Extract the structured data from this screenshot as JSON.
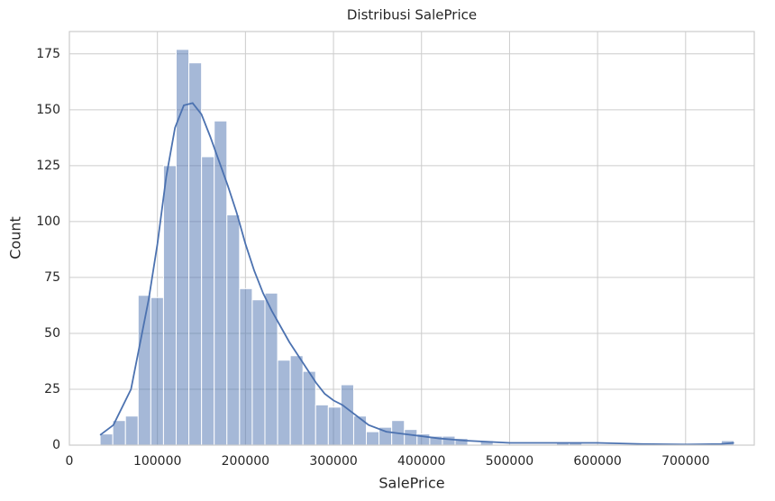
{
  "chart_data": {
    "type": "histogram",
    "title": "Distribusi SalePrice",
    "x_label": "SalePrice",
    "y_label": "Count",
    "bins": [
      34900,
      49302,
      63704,
      78106,
      92508,
      106910,
      121312,
      135714,
      150116,
      164518,
      178920,
      193322,
      207724,
      222126,
      236528,
      250930,
      265332,
      279734,
      294136,
      308538,
      322940,
      337342,
      351744,
      366146,
      380548,
      394950,
      409352,
      423754,
      438156,
      452558,
      466960,
      481362,
      495764,
      510166,
      524568,
      538970,
      553372,
      567774,
      582176,
      596578,
      610980,
      625382,
      639784,
      654186,
      668588,
      682990,
      697392,
      711794,
      726196,
      740598,
      755000
    ],
    "counts": [
      5,
      11,
      13,
      67,
      66,
      125,
      177,
      171,
      129,
      145,
      103,
      70,
      65,
      68,
      38,
      40,
      33,
      18,
      17,
      27,
      13,
      6,
      8,
      11,
      7,
      5,
      4,
      4,
      3,
      0,
      2,
      0,
      0,
      0,
      0,
      0,
      1,
      1,
      0,
      0,
      0,
      0,
      0,
      0,
      0,
      0,
      0,
      0,
      0,
      2
    ],
    "color": "#4c72b0",
    "kde": {
      "color": "#4c72b0",
      "x": [
        34900,
        50000,
        70000,
        90000,
        100000,
        110000,
        120000,
        130000,
        140000,
        150000,
        160000,
        170000,
        180000,
        190000,
        200000,
        210000,
        220000,
        230000,
        240000,
        250000,
        260000,
        270000,
        280000,
        290000,
        300000,
        310000,
        320000,
        330000,
        340000,
        360000,
        380000,
        400000,
        420000,
        450000,
        500000,
        550000,
        600000,
        650000,
        700000,
        740000,
        755000
      ],
      "values": [
        4.5,
        9,
        25,
        65,
        90,
        120,
        142,
        152,
        153,
        148,
        138,
        127,
        116,
        104,
        90,
        78,
        68,
        60,
        53,
        46,
        40,
        34,
        28,
        23,
        20,
        18,
        15,
        12,
        9,
        6,
        5,
        4,
        3,
        2,
        1,
        1,
        1,
        0.5,
        0.3,
        0.5,
        1
      ]
    },
    "xlim": [
      0,
      778000
    ],
    "ylim": [
      0,
      185
    ],
    "xticks": [
      0,
      100000,
      200000,
      300000,
      400000,
      500000,
      600000,
      700000
    ],
    "yticks": [
      0,
      25,
      50,
      75,
      100,
      125,
      150,
      175
    ],
    "grid": true
  }
}
